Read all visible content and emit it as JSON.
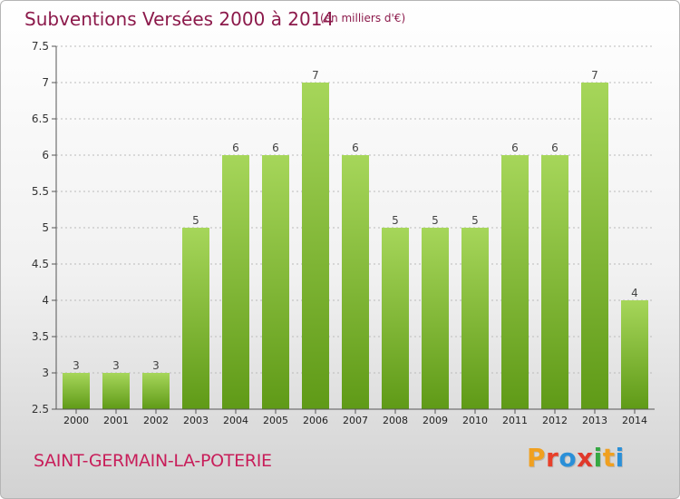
{
  "header": {
    "title": "Subventions Versées 2000 à 2014",
    "subtitle": "(en milliers d'€)"
  },
  "footer": {
    "commune": "SAINT-GERMAIN-LA-POTERIE",
    "brand_letters": [
      "P",
      "r",
      "o",
      "x",
      "i",
      "t",
      "i"
    ],
    "brand_colors": [
      "#f0a020",
      "#e8402a",
      "#2a8fd8",
      "#e0392b",
      "#35a843",
      "#f0a020",
      "#2a8fd8"
    ]
  },
  "colors": {
    "bar_top": "#a6d65a",
    "bar_bottom": "#5f9a17",
    "axis": "#555555",
    "grid": "#bbbbbb"
  },
  "chart_data": {
    "type": "bar",
    "title": "Subventions Versées 2000 à 2014",
    "subtitle": "(en milliers d'€)",
    "categories": [
      "2000",
      "2001",
      "2002",
      "2003",
      "2004",
      "2005",
      "2006",
      "2007",
      "2008",
      "2009",
      "2010",
      "2011",
      "2012",
      "2013",
      "2014"
    ],
    "values": [
      3,
      3,
      3,
      5,
      6,
      6,
      7,
      6,
      5,
      5,
      5,
      6,
      6,
      7,
      4
    ],
    "data_labels": [
      "3",
      "3",
      "3",
      "5",
      "6",
      "6",
      "7",
      "6",
      "5",
      "5",
      "5",
      "6",
      "6",
      "7",
      "4"
    ],
    "ylim": [
      2.5,
      7.5
    ],
    "yticks": [
      2.5,
      3,
      3.5,
      4,
      4.5,
      5,
      5.5,
      6,
      6.5,
      7,
      7.5
    ],
    "ytick_labels": [
      "2.5",
      "3",
      "3.5",
      "4",
      "4.5",
      "5",
      "5.5",
      "6",
      "6.5",
      "7",
      "7.5"
    ],
    "grid": true,
    "legend": false
  }
}
